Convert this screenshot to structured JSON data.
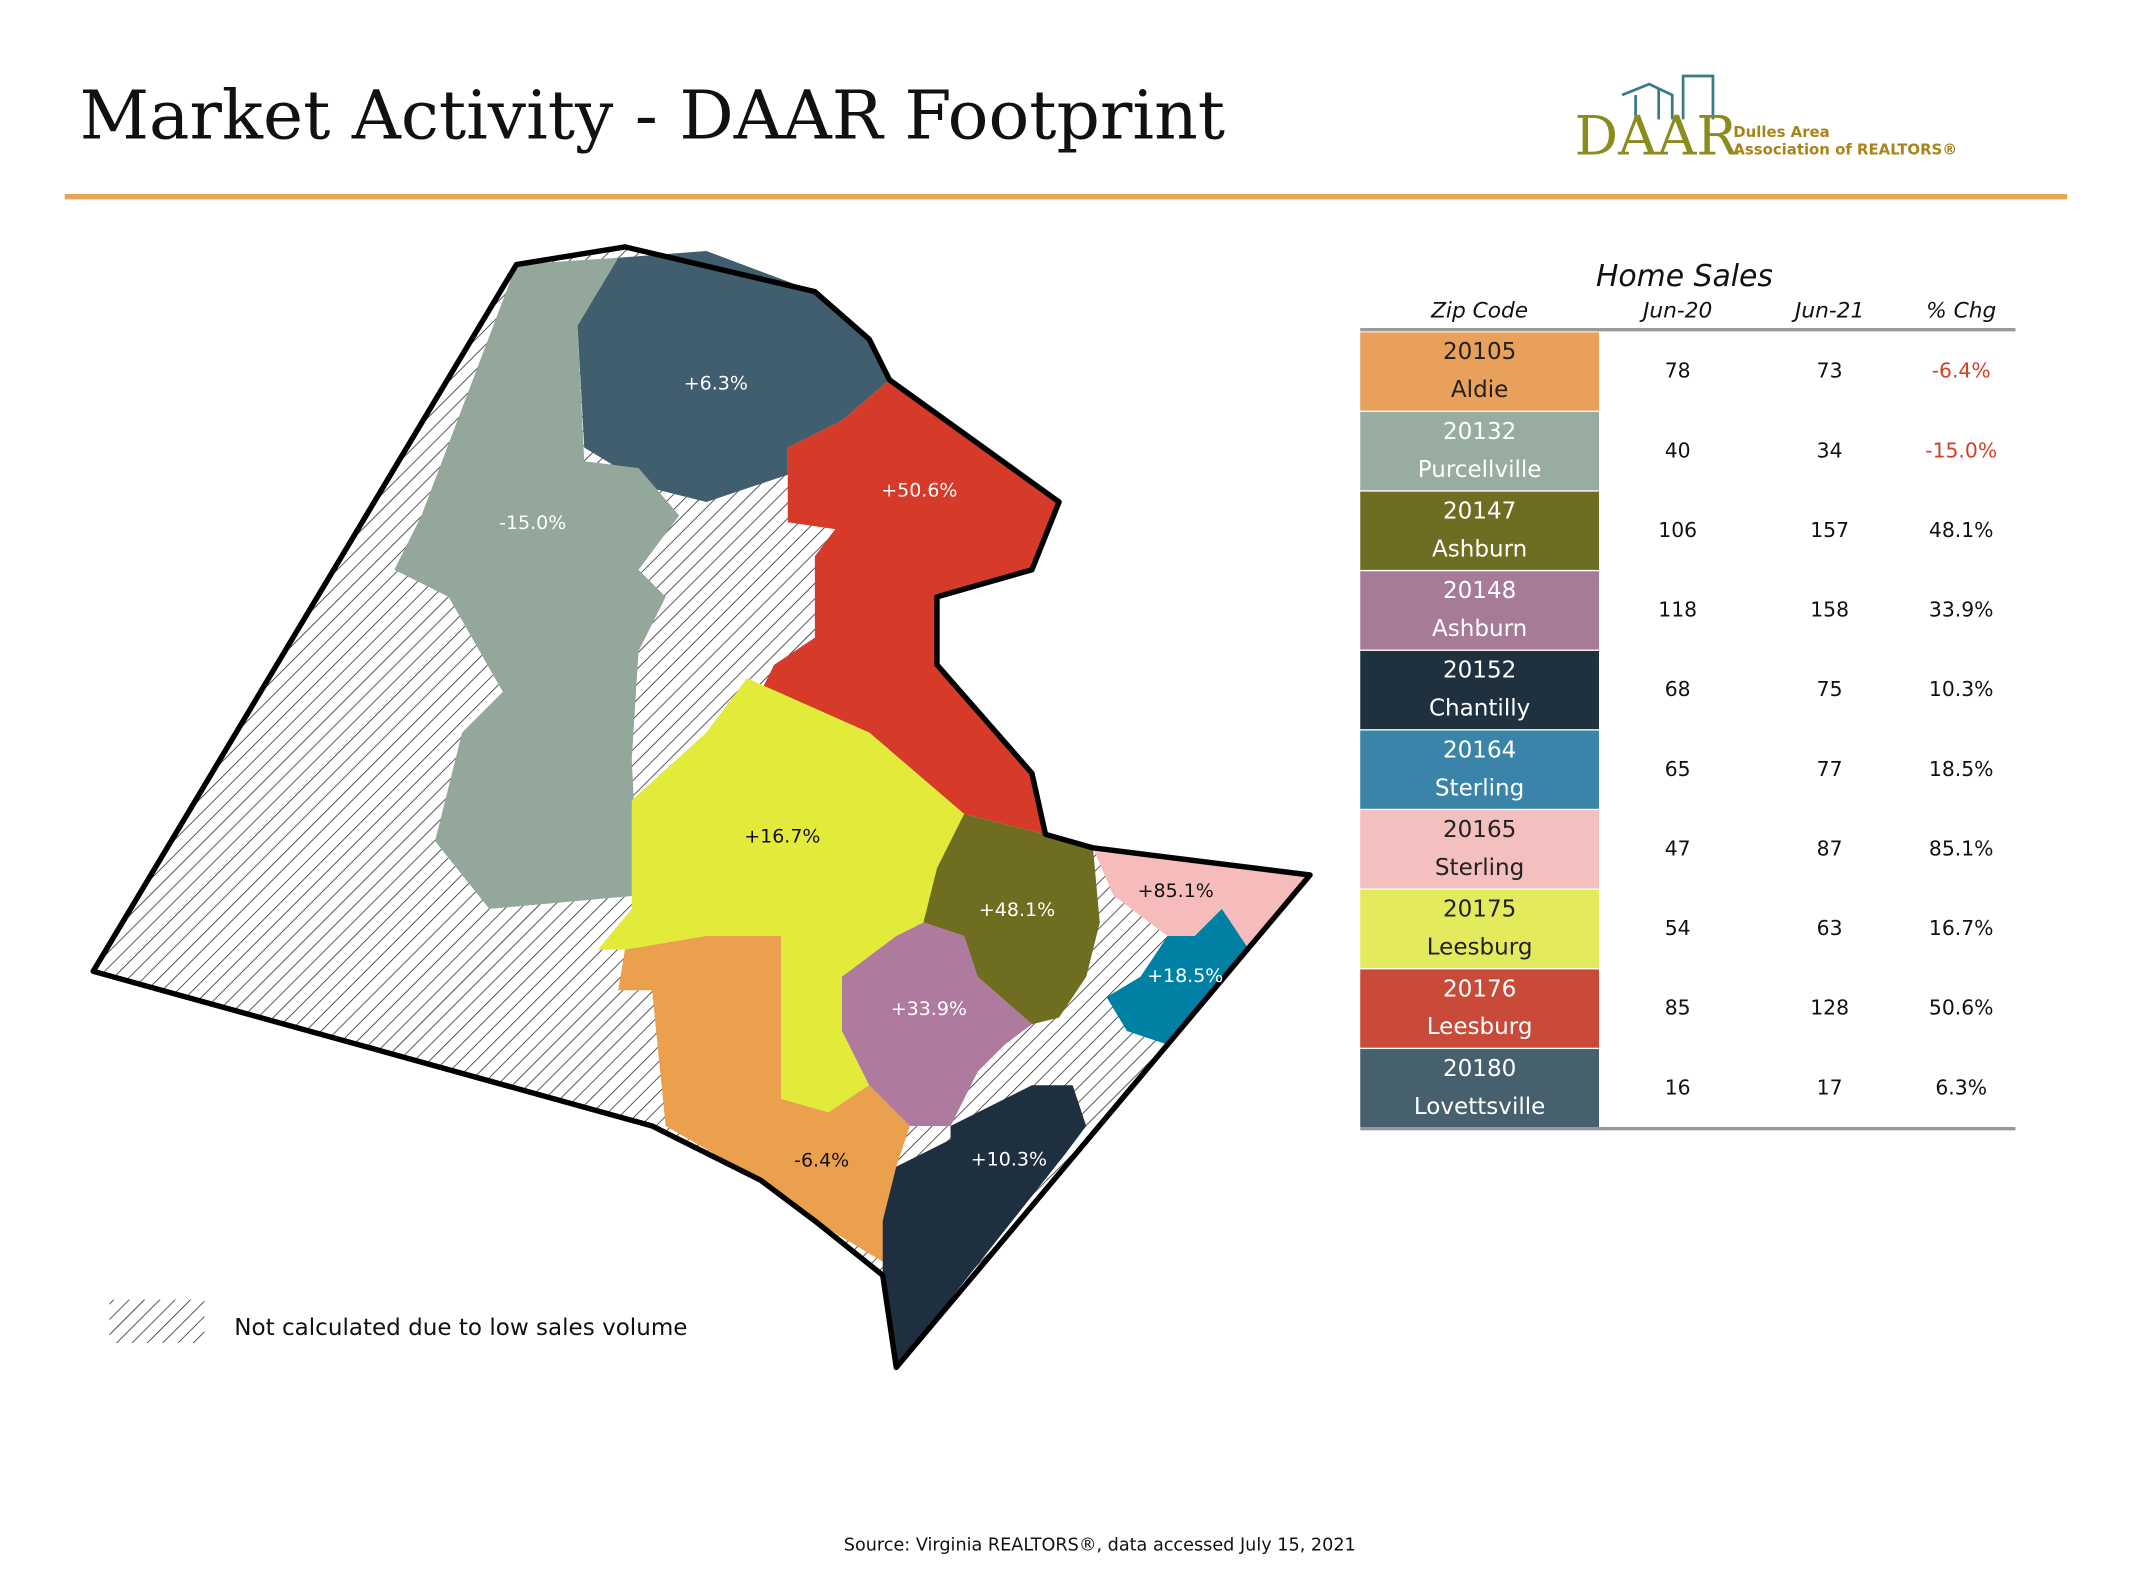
{
  "header": {
    "title": "Market Activity - DAAR Footprint",
    "logo": {
      "mark": "DAAR",
      "line1": "Dulles Area",
      "line2": "Association of REALTORS®"
    }
  },
  "map": {
    "regions": [
      {
        "label": "+6.3%",
        "color": "#405e6e"
      },
      {
        "label": "-15.0%",
        "color": "#93a89a"
      },
      {
        "label": "+50.6%",
        "color": "#d63b2a"
      },
      {
        "label": "+16.7%",
        "color": "#e2ea3a"
      },
      {
        "label": "+48.1%",
        "color": "#6f6d1f"
      },
      {
        "label": "+85.1%",
        "color": "#f6bcbc"
      },
      {
        "label": "+18.5%",
        "color": "#0081a3"
      },
      {
        "label": "+33.9%",
        "color": "#ae7a9d"
      },
      {
        "label": "-6.4%",
        "color": "#eaa04d"
      },
      {
        "label": "+10.3%",
        "color": "#1e3040"
      }
    ],
    "legend": "Not calculated due to low sales volume"
  },
  "table": {
    "title": "Home Sales",
    "columns": [
      "Zip Code",
      "Jun-20",
      "Jun-21",
      "% Chg"
    ],
    "rows": [
      {
        "zip": "20105",
        "place": "Aldie",
        "color": "#e8a05a",
        "jun20": 78,
        "jun21": 73,
        "chg": "-6.4%"
      },
      {
        "zip": "20132",
        "place": "Purcellville",
        "color": "#98ad9f",
        "jun20": 40,
        "jun21": 34,
        "chg": "-15.0%"
      },
      {
        "zip": "20147",
        "place": "Ashburn",
        "color": "#6f6d21",
        "jun20": 106,
        "jun21": 157,
        "chg": "48.1%"
      },
      {
        "zip": "20148",
        "place": "Ashburn",
        "color": "#a77b98",
        "jun20": 118,
        "jun21": 158,
        "chg": "33.9%"
      },
      {
        "zip": "20152",
        "place": "Chantilly",
        "color": "#1f313e",
        "jun20": 68,
        "jun21": 75,
        "chg": "10.3%"
      },
      {
        "zip": "20164",
        "place": "Sterling",
        "color": "#3a84aa",
        "jun20": 65,
        "jun21": 77,
        "chg": "18.5%"
      },
      {
        "zip": "20165",
        "place": "Sterling",
        "color": "#f3bfbf",
        "jun20": 47,
        "jun21": 87,
        "chg": "85.1%"
      },
      {
        "zip": "20175",
        "place": "Leesburg",
        "color": "#e3ea5c",
        "jun20": 54,
        "jun21": 63,
        "chg": "16.7%"
      },
      {
        "zip": "20176",
        "place": "Leesburg",
        "color": "#c94a38",
        "jun20": 85,
        "jun21": 128,
        "chg": "50.6%"
      },
      {
        "zip": "20180",
        "place": "Lovettsville",
        "color": "#46606e",
        "jun20": 16,
        "jun21": 17,
        "chg": "6.3%"
      }
    ]
  },
  "footer": {
    "source": "Source: Virginia REALTORS®, data accessed July 15, 2021"
  }
}
